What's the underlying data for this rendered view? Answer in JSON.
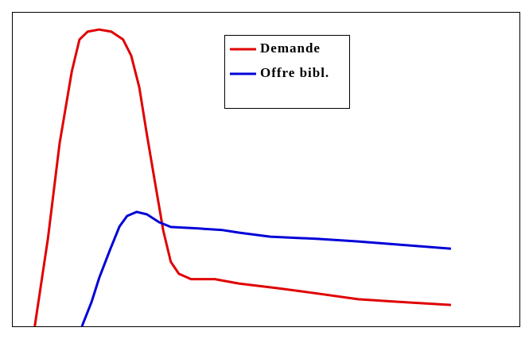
{
  "chart_data": {
    "type": "line",
    "xlim": [
      0,
      100
    ],
    "ylim": [
      0,
      100
    ],
    "grid": false,
    "legend": "top",
    "series": [
      {
        "name": "Demande",
        "color": "#e00000",
        "x": [
          4.5,
          7.1,
          9.4,
          11.8,
          13.3,
          14.9,
          17.2,
          19.6,
          21.9,
          23.5,
          25.1,
          26.6,
          28.2,
          29.8,
          31.3,
          32.9,
          35.3,
          40.0,
          44.7,
          52.5,
          60.3,
          68.2,
          76.0,
          86.5
        ],
        "values": [
          0,
          28.0,
          58.3,
          81.1,
          91.2,
          93.7,
          94.4,
          93.7,
          91.2,
          86.1,
          76.0,
          60.9,
          45.7,
          30.6,
          20.5,
          16.7,
          15.0,
          15.0,
          13.6,
          12.1,
          10.4,
          8.6,
          7.8,
          6.8
        ]
      },
      {
        "name": "Offre bibl.",
        "color": "#0000d8",
        "x": [
          13.8,
          15.7,
          17.2,
          19.3,
          21.2,
          22.7,
          24.6,
          26.6,
          29.0,
          31.3,
          36.8,
          41.5,
          44.7,
          50.9,
          60.3,
          68.2,
          76.0,
          86.5
        ],
        "values": [
          0,
          7.8,
          15.4,
          24.2,
          31.8,
          35.1,
          36.4,
          35.6,
          33.1,
          31.6,
          31.1,
          30.6,
          29.8,
          28.5,
          27.8,
          27.0,
          26.0,
          24.7
        ]
      }
    ]
  }
}
